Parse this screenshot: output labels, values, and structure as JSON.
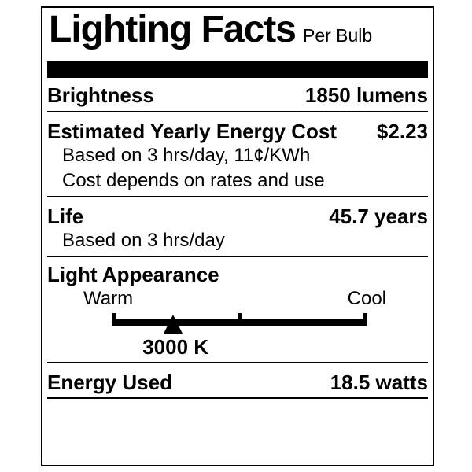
{
  "label": {
    "title": "Lighting Facts",
    "subtitle": "Per Bulb",
    "colors": {
      "ink": "#000000",
      "background": "#ffffff"
    },
    "sections": {
      "brightness": {
        "name": "Brightness",
        "value": "1850 lumens"
      },
      "energy_cost": {
        "name": "Estimated Yearly Energy Cost",
        "value": "$2.23",
        "notes": [
          "Based on 3 hrs/day, 11¢/KWh",
          "Cost depends on rates and use"
        ]
      },
      "life": {
        "name": "Life",
        "value": "45.7 years",
        "notes": [
          "Based on 3 hrs/day"
        ]
      },
      "light_appearance": {
        "name": "Light Appearance",
        "warm_label": "Warm",
        "cool_label": "Cool",
        "marker_value": "3000 K",
        "marker_position_pct": 23.8
      },
      "energy_used": {
        "name": "Energy Used",
        "value": "18.5 watts"
      }
    }
  }
}
